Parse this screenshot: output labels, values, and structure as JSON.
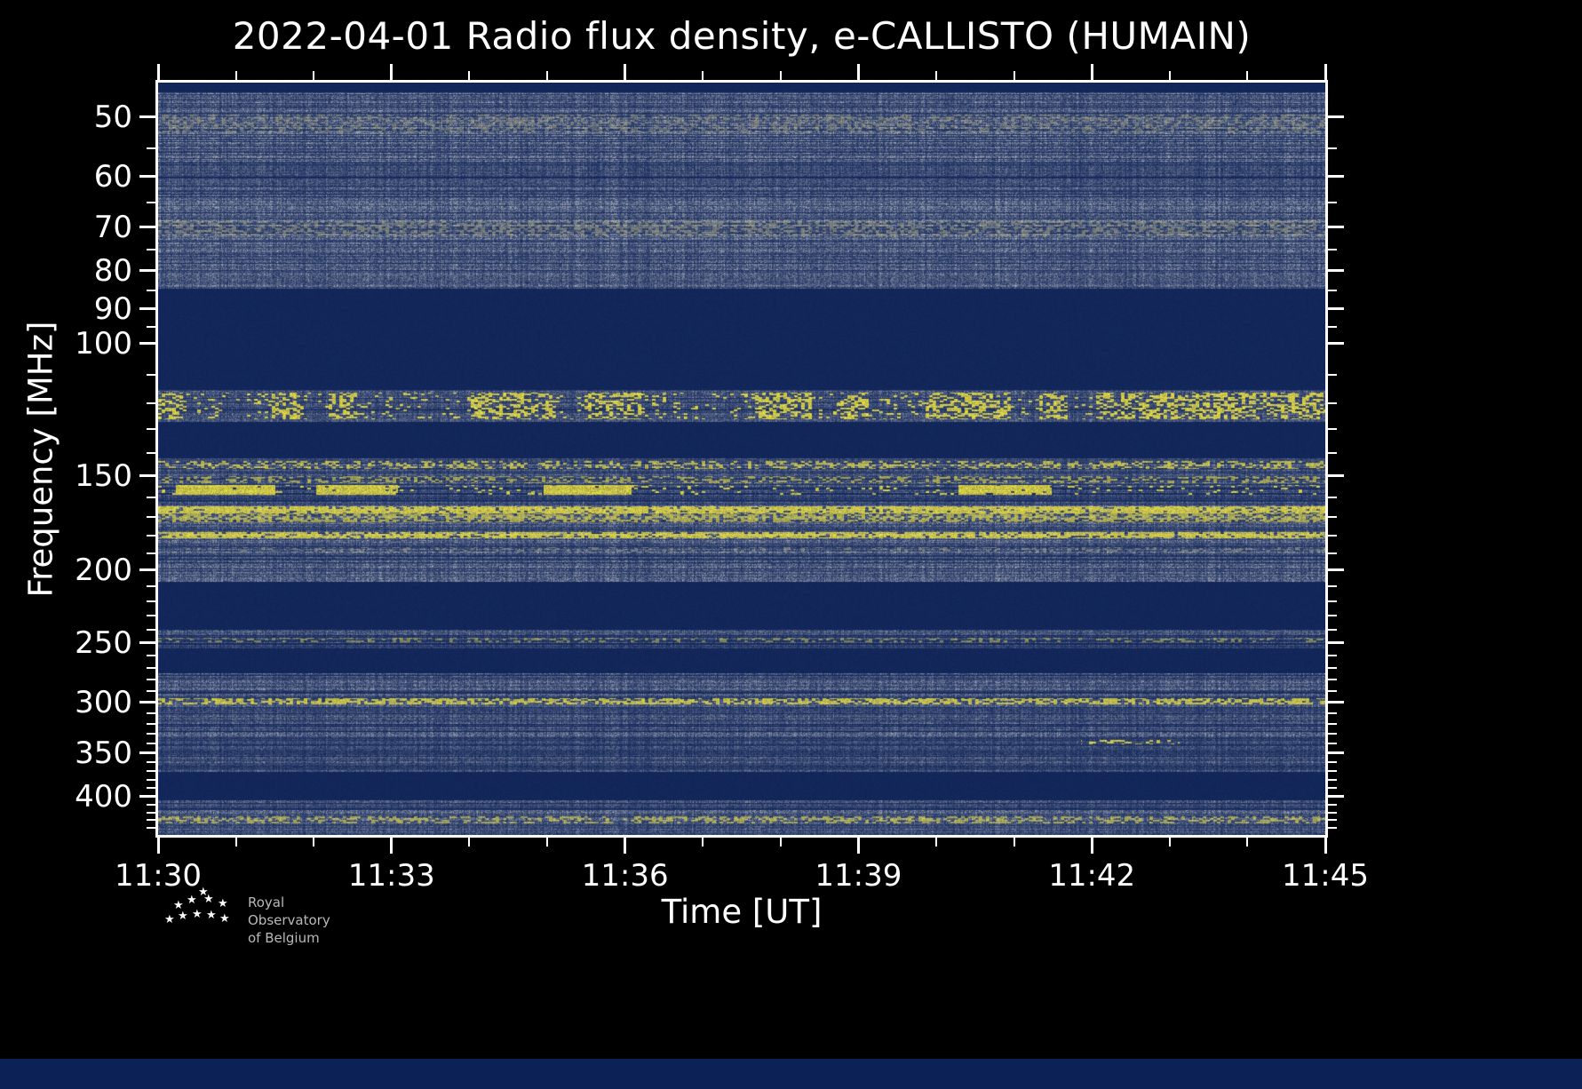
{
  "chart_data": {
    "type": "heatmap",
    "subtype": "radio-spectrogram",
    "title": "2022-04-01 Radio flux density, e-CALLISTO (HUMAIN)",
    "xlabel": "Time [UT]",
    "ylabel": "Frequency [MHz]",
    "time_start": "11:30",
    "time_end": "11:45",
    "x_ticks": {
      "labels": [
        "11:30",
        "11:33",
        "11:36",
        "11:39",
        "11:42",
        "11:45"
      ],
      "minutes": [
        0,
        3,
        6,
        9,
        12,
        15
      ],
      "total_minutes": 15,
      "minor_every_minutes": 1
    },
    "y_ticks": {
      "labels": [
        "50",
        "60",
        "70",
        "80",
        "90",
        "100",
        "150",
        "200",
        "250",
        "300",
        "350",
        "400"
      ],
      "values": [
        50,
        60,
        70,
        80,
        90,
        100,
        150,
        200,
        250,
        300,
        350,
        400
      ],
      "minor_values": [
        55,
        65,
        75,
        85,
        95,
        110,
        120,
        130,
        140,
        160,
        170,
        180,
        190,
        210,
        220,
        230,
        240,
        260,
        270,
        280,
        290,
        310,
        320,
        330,
        340,
        360,
        370,
        380,
        390,
        410,
        420,
        430,
        440
      ]
    },
    "freq_range_mhz": [
      45,
      450
    ],
    "y_scale": "log",
    "y_inverted": true,
    "grid": false,
    "legend": "none",
    "colors": {
      "page_background": "#000000",
      "plot_background": "#0c2156",
      "noise_bright": "#a9aeb9",
      "yellow": "#f5e83c",
      "yellow_pale": "#cfc684",
      "axis": "#ffffff",
      "tick_label": "#ffffff",
      "bottom_strip": "#0c2156",
      "logo_text": "#b9b9b9"
    },
    "bands": [
      {
        "f0": 45.0,
        "f1": 46.3,
        "kind": "blank"
      },
      {
        "f0": 46.3,
        "f1": 57.5,
        "kind": "noise",
        "gain": 0.8
      },
      {
        "f0": 57.5,
        "f1": 62.0,
        "kind": "noise",
        "gain": 0.5
      },
      {
        "f0": 62.0,
        "f1": 84.5,
        "kind": "noise",
        "gain": 0.7
      },
      {
        "f0": 84.5,
        "f1": 115.0,
        "kind": "blank"
      },
      {
        "f0": 115.0,
        "f1": 127.0,
        "kind": "noise",
        "gain": 0.55
      },
      {
        "f0": 127.0,
        "f1": 142.0,
        "kind": "blank"
      },
      {
        "f0": 142.0,
        "f1": 149.0,
        "kind": "noise",
        "gain": 0.62
      },
      {
        "f0": 149.0,
        "f1": 164.0,
        "kind": "noise",
        "gain": 0.58
      },
      {
        "f0": 164.0,
        "f1": 207.0,
        "kind": "noise",
        "gain": 0.68
      },
      {
        "f0": 207.0,
        "f1": 240.0,
        "kind": "blank"
      },
      {
        "f0": 240.0,
        "f1": 254.0,
        "kind": "noise",
        "gain": 0.52
      },
      {
        "f0": 254.0,
        "f1": 274.0,
        "kind": "blank"
      },
      {
        "f0": 274.0,
        "f1": 332.0,
        "kind": "noise",
        "gain": 0.62
      },
      {
        "f0": 332.0,
        "f1": 354.0,
        "kind": "noise",
        "gain": 0.45
      },
      {
        "f0": 354.0,
        "f1": 371.0,
        "kind": "noise",
        "gain": 0.52
      },
      {
        "f0": 371.0,
        "f1": 404.0,
        "kind": "blank"
      },
      {
        "f0": 404.0,
        "f1": 450.0,
        "kind": "noise",
        "gain": 0.62
      }
    ],
    "emission_lines": [
      {
        "f0": 49.5,
        "f1": 52.5,
        "coverage": 0.4,
        "intensity": 0.45,
        "style": "pale"
      },
      {
        "f0": 68.5,
        "f1": 72.0,
        "coverage": 0.45,
        "intensity": 0.5,
        "style": "pale"
      },
      {
        "f0": 116.0,
        "f1": 126.0,
        "coverage": 0.5,
        "intensity": 1.0,
        "style": "bright",
        "clustered": true
      },
      {
        "f0": 143.0,
        "f1": 146.5,
        "coverage": 0.38,
        "intensity": 0.85,
        "style": "bright"
      },
      {
        "f0": 150.0,
        "f1": 153.0,
        "coverage": 0.35,
        "intensity": 0.7,
        "style": "bright"
      },
      {
        "f0": 154.0,
        "f1": 158.5,
        "coverage": 0.1,
        "intensity": 1.0,
        "style": "bright",
        "segments": [
          [
            0.015,
            0.1
          ],
          [
            0.135,
            0.205
          ],
          [
            0.33,
            0.405
          ],
          [
            0.685,
            0.765
          ]
        ],
        "segment_coverage": 0.97
      },
      {
        "f0": 164.5,
        "f1": 168.0,
        "coverage": 0.85,
        "intensity": 0.95,
        "style": "bright"
      },
      {
        "f0": 168.0,
        "f1": 172.5,
        "coverage": 0.6,
        "intensity": 0.75,
        "style": "bright"
      },
      {
        "f0": 178.0,
        "f1": 181.5,
        "coverage": 0.8,
        "intensity": 0.95,
        "style": "bright"
      },
      {
        "f0": 186.0,
        "f1": 189.5,
        "coverage": 0.22,
        "intensity": 0.5,
        "style": "pale"
      },
      {
        "f0": 246.0,
        "f1": 249.0,
        "coverage": 0.3,
        "intensity": 0.55,
        "style": "bright"
      },
      {
        "f0": 296.0,
        "f1": 301.0,
        "coverage": 0.62,
        "intensity": 0.9,
        "style": "bright"
      },
      {
        "f0": 336.0,
        "f1": 340.5,
        "coverage": 0.0,
        "intensity": 0.95,
        "style": "bright",
        "segments": [
          [
            0.79,
            0.875
          ]
        ],
        "segment_coverage": 0.3
      },
      {
        "f0": 425.0,
        "f1": 434.0,
        "coverage": 0.45,
        "intensity": 0.7,
        "style": "bright"
      }
    ]
  },
  "logo": {
    "line1": "Royal Observatory",
    "line2": "of Belgium",
    "star_glyph": "★"
  }
}
